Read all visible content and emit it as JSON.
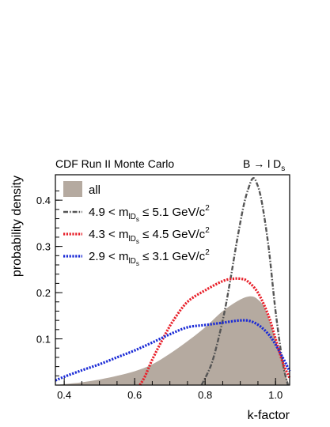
{
  "header": {
    "left": "CDF Run II Monte Carlo",
    "right_main": "B → l D",
    "right_sub": "s"
  },
  "chart_data": {
    "type": "area",
    "xlabel": "k-factor",
    "ylabel": "probability density",
    "xlim": [
      0.375,
      1.04
    ],
    "ylim": [
      0,
      0.455
    ],
    "x_ticks": [
      0.4,
      0.6,
      0.8,
      1.0
    ],
    "x_tick_labels": [
      "0.4",
      "0.6",
      "0.8",
      "1.0"
    ],
    "y_ticks": [
      0.1,
      0.2,
      0.3,
      0.4
    ],
    "y_tick_labels": [
      "0.1",
      "0.2",
      "0.3",
      "0.4"
    ],
    "legend_position": "top-left",
    "series": [
      {
        "name": "all",
        "style": "filled",
        "color": "#b5aaa0",
        "x": [
          0.375,
          0.4,
          0.45,
          0.5,
          0.55,
          0.6,
          0.65,
          0.7,
          0.75,
          0.8,
          0.85,
          0.9,
          0.93,
          0.95,
          0.97,
          1.0,
          1.03,
          1.04
        ],
        "y": [
          0.0,
          0.002,
          0.006,
          0.012,
          0.02,
          0.03,
          0.045,
          0.068,
          0.095,
          0.125,
          0.16,
          0.185,
          0.192,
          0.185,
          0.165,
          0.1,
          0.02,
          0.0
        ]
      },
      {
        "name": "4.9 < m_lDs ≤ 5.1 GeV/c²",
        "legend_parts": [
          "4.9 < m",
          "lD",
          "s",
          " ≤ 5.1 GeV/c",
          "2"
        ],
        "style": "dashdot",
        "color": "#555555",
        "x": [
          0.79,
          0.82,
          0.85,
          0.87,
          0.89,
          0.91,
          0.925,
          0.935,
          0.945,
          0.96,
          0.98,
          1.0,
          1.02,
          1.035
        ],
        "y": [
          0.0,
          0.05,
          0.14,
          0.22,
          0.31,
          0.39,
          0.43,
          0.447,
          0.44,
          0.4,
          0.3,
          0.16,
          0.05,
          0.0
        ]
      },
      {
        "name": "4.3 < m_lDs ≤ 4.5 GeV/c²",
        "legend_parts": [
          "4.3 < m",
          "lD",
          "s",
          " ≤ 4.5 GeV/c",
          "2"
        ],
        "style": "dotted",
        "color": "#e8202a",
        "x": [
          0.615,
          0.63,
          0.65,
          0.68,
          0.71,
          0.75,
          0.8,
          0.85,
          0.88,
          0.9,
          0.92,
          0.95,
          0.98,
          1.0,
          1.02,
          1.04
        ],
        "y": [
          0.0,
          0.02,
          0.055,
          0.1,
          0.14,
          0.18,
          0.205,
          0.225,
          0.23,
          0.23,
          0.225,
          0.2,
          0.15,
          0.1,
          0.05,
          0.015
        ]
      },
      {
        "name": "2.9 < m_lDs ≤ 3.1 GeV/c²",
        "legend_parts": [
          "2.9 < m",
          "lD",
          "s",
          " ≤ 3.1 GeV/c",
          "2"
        ],
        "style": "dotted",
        "color": "#1a2ad6",
        "x": [
          0.375,
          0.4,
          0.45,
          0.5,
          0.55,
          0.6,
          0.65,
          0.7,
          0.75,
          0.8,
          0.85,
          0.9,
          0.93,
          0.96,
          0.99,
          1.02,
          1.04
        ],
        "y": [
          0.01,
          0.018,
          0.032,
          0.045,
          0.06,
          0.075,
          0.092,
          0.11,
          0.125,
          0.13,
          0.135,
          0.14,
          0.138,
          0.125,
          0.1,
          0.06,
          0.03
        ]
      }
    ]
  }
}
